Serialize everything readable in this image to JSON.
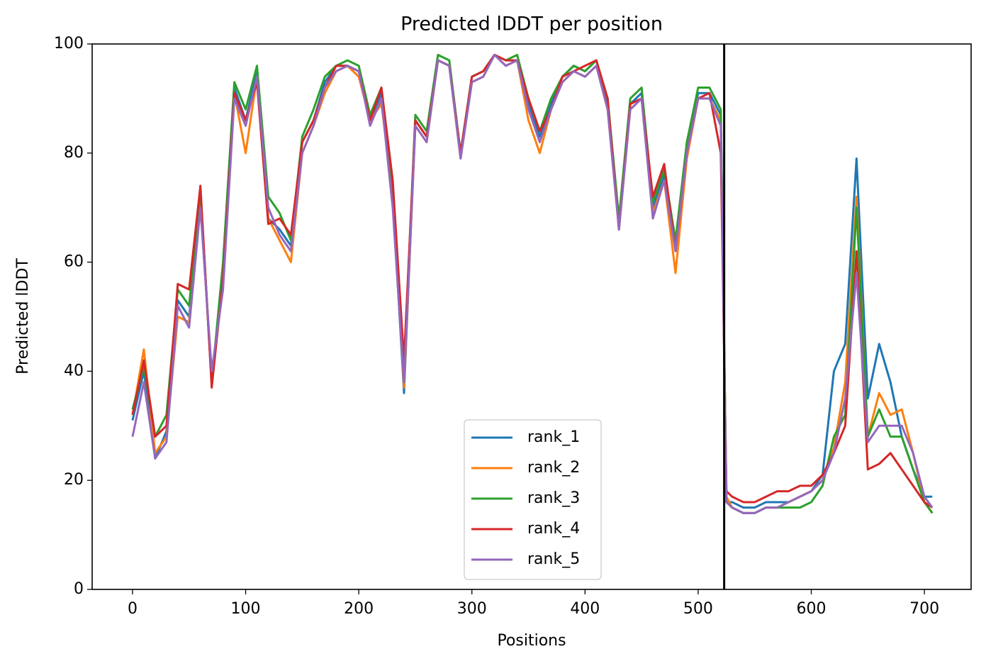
{
  "chart_data": {
    "type": "line",
    "title": "Predicted lDDT per position",
    "xlabel": "Positions",
    "ylabel": "Predicted lDDT",
    "x": [
      0,
      10,
      20,
      30,
      40,
      50,
      60,
      70,
      80,
      90,
      100,
      110,
      120,
      130,
      140,
      150,
      160,
      170,
      180,
      190,
      200,
      210,
      220,
      230,
      240,
      250,
      260,
      270,
      280,
      290,
      300,
      310,
      320,
      330,
      340,
      350,
      360,
      370,
      380,
      390,
      400,
      410,
      420,
      430,
      440,
      450,
      460,
      470,
      480,
      490,
      500,
      510,
      520,
      525,
      530,
      540,
      550,
      560,
      570,
      580,
      590,
      600,
      610,
      620,
      630,
      640,
      650,
      660,
      670,
      680,
      690,
      700,
      707
    ],
    "series": [
      {
        "name": "rank_1",
        "color": "#1f77b4",
        "values": [
          31,
          40,
          24,
          29,
          53,
          50,
          72,
          38,
          57,
          92,
          86,
          95,
          68,
          66,
          63,
          82,
          86,
          93,
          96,
          96,
          95,
          86,
          91,
          72,
          36,
          86,
          83,
          97,
          96,
          80,
          94,
          95,
          98,
          97,
          97,
          89,
          83,
          89,
          94,
          96,
          95,
          97,
          89,
          67,
          89,
          91,
          70,
          76,
          63,
          81,
          91,
          91,
          87,
          16,
          16,
          15,
          15,
          16,
          16,
          16,
          17,
          18,
          21,
          40,
          45,
          79,
          35,
          45,
          38,
          28,
          22,
          17,
          17
        ]
      },
      {
        "name": "rank_2",
        "color": "#ff7f0e",
        "values": [
          32,
          44,
          25,
          28,
          50,
          49,
          73,
          38,
          56,
          91,
          80,
          94,
          68,
          64,
          60,
          80,
          85,
          91,
          95,
          96,
          94,
          86,
          89,
          73,
          37,
          85,
          82,
          97,
          96,
          79,
          93,
          94,
          98,
          96,
          97,
          86,
          80,
          88,
          93,
          95,
          94,
          96,
          88,
          66,
          88,
          90,
          69,
          75,
          58,
          79,
          90,
          90,
          86,
          17,
          15,
          14,
          14,
          15,
          15,
          16,
          17,
          18,
          20,
          26,
          38,
          72,
          28,
          36,
          32,
          33,
          25,
          16,
          14
        ]
      },
      {
        "name": "rank_3",
        "color": "#2ca02c",
        "values": [
          33,
          41,
          28,
          32,
          55,
          52,
          73,
          38,
          60,
          93,
          88,
          96,
          72,
          69,
          64,
          83,
          88,
          94,
          96,
          97,
          96,
          87,
          92,
          74,
          40,
          87,
          84,
          98,
          97,
          80,
          94,
          95,
          98,
          97,
          98,
          90,
          84,
          90,
          94,
          96,
          95,
          97,
          90,
          68,
          90,
          92,
          71,
          77,
          64,
          82,
          92,
          92,
          88,
          16,
          15,
          14,
          14,
          15,
          15,
          15,
          15,
          16,
          19,
          28,
          32,
          70,
          28,
          33,
          28,
          28,
          22,
          16,
          14
        ]
      },
      {
        "name": "rank_4",
        "color": "#d62728",
        "values": [
          32,
          42,
          28,
          30,
          56,
          55,
          74,
          37,
          57,
          91,
          86,
          93,
          67,
          68,
          65,
          82,
          86,
          92,
          96,
          96,
          95,
          86,
          92,
          75,
          42,
          86,
          83,
          97,
          96,
          80,
          94,
          95,
          98,
          97,
          97,
          90,
          84,
          88,
          94,
          95,
          96,
          97,
          90,
          66,
          89,
          90,
          72,
          78,
          62,
          80,
          90,
          91,
          80,
          18,
          17,
          16,
          16,
          17,
          18,
          18,
          19,
          19,
          21,
          25,
          30,
          62,
          22,
          23,
          25,
          22,
          19,
          16,
          15
        ]
      },
      {
        "name": "rank_5",
        "color": "#9467bd",
        "values": [
          28,
          38,
          24,
          27,
          52,
          48,
          70,
          40,
          55,
          90,
          85,
          94,
          70,
          65,
          62,
          80,
          85,
          92,
          95,
          96,
          95,
          85,
          90,
          70,
          38,
          85,
          82,
          97,
          96,
          79,
          93,
          94,
          98,
          96,
          97,
          88,
          82,
          88,
          93,
          95,
          94,
          96,
          88,
          66,
          88,
          90,
          68,
          75,
          62,
          80,
          90,
          90,
          85,
          16,
          15,
          14,
          14,
          15,
          15,
          16,
          17,
          18,
          20,
          25,
          35,
          58,
          27,
          30,
          30,
          30,
          25,
          17,
          15
        ]
      }
    ],
    "vline": 523,
    "vline_color": "#000000",
    "xlim": [
      -35.7,
      741.3
    ],
    "xticks": [
      0,
      100,
      200,
      300,
      400,
      500,
      600,
      700
    ],
    "ylim": [
      0,
      100
    ],
    "yticks": [
      0,
      20,
      40,
      60,
      80,
      100
    ],
    "legend": "lower center"
  }
}
